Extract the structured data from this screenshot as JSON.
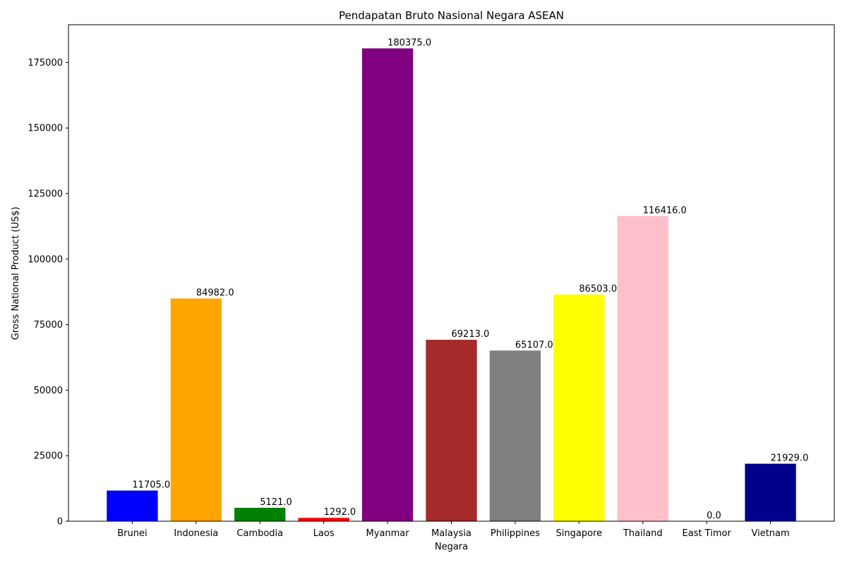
{
  "chart_data": {
    "type": "bar",
    "title": "Pendapatan Bruto Nasional Negara ASEAN",
    "xlabel": "Negara",
    "ylabel": "Gross National Product (US$)",
    "ylim": [
      0,
      189394
    ],
    "yticks": [
      0,
      25000,
      50000,
      75000,
      100000,
      125000,
      150000,
      175000
    ],
    "categories": [
      "Brunei",
      "Indonesia",
      "Cambodia",
      "Laos",
      "Myanmar",
      "Malaysia",
      "Philippines",
      "Singapore",
      "Thailand",
      "East Timor",
      "Vietnam"
    ],
    "values": [
      11705.0,
      84982.0,
      5121.0,
      1292.0,
      180375.0,
      69213.0,
      65107.0,
      86503.0,
      116416.0,
      0.0,
      21929.0
    ],
    "value_labels": [
      "11705.0",
      "84982.0",
      "5121.0",
      "1292.0",
      "180375.0",
      "69213.0",
      "65107.0",
      "86503.0",
      "116416.0",
      "0.0",
      "21929.0"
    ],
    "colors": [
      "#0000ff",
      "#ffa500",
      "#008000",
      "#ff0000",
      "#800080",
      "#a52a2a",
      "#808080",
      "#ffff00",
      "#ffc0cb",
      "#ffffff",
      "#00008b"
    ],
    "grid": false,
    "legend": "none"
  }
}
